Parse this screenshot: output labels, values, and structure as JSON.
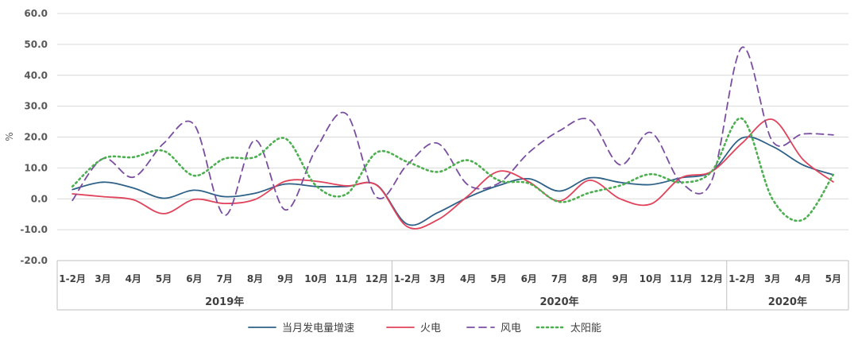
{
  "chart_data": {
    "type": "line",
    "ylabel": "%",
    "ylim": [
      -20,
      60
    ],
    "yticks": [
      "60.0",
      "50.0",
      "40.0",
      "30.0",
      "20.0",
      "10.0",
      "0.0",
      "-10.0",
      "-20.0"
    ],
    "grid": true,
    "legend_position": "bottom",
    "categories": [
      "1-2月",
      "3月",
      "4月",
      "5月",
      "6月",
      "7月",
      "8月",
      "9月",
      "10月",
      "11月",
      "12月",
      "1-2月",
      "3月",
      "4月",
      "5月",
      "6月",
      "7月",
      "8月",
      "9月",
      "10月",
      "11月",
      "12月",
      "1-2月",
      "3月",
      "4月",
      "5月"
    ],
    "groups": [
      {
        "label": "2019年",
        "start": 0,
        "end": 10
      },
      {
        "label": "2020年",
        "start": 11,
        "end": 21
      },
      {
        "label": "2020年",
        "start": 22,
        "end": 25
      }
    ],
    "series": [
      {
        "name": "当月发电量增速",
        "color": "#2e6187",
        "style": "solid",
        "values": [
          3.0,
          5.4,
          3.5,
          0.2,
          2.8,
          0.7,
          1.8,
          4.8,
          4.0,
          4.0,
          4.5,
          -8.2,
          -4.5,
          0.5,
          4.3,
          6.5,
          2.5,
          6.8,
          5.3,
          4.6,
          6.8,
          8.8,
          19.7,
          17.0,
          11.0,
          7.8
        ]
      },
      {
        "name": "火电",
        "color": "#e0435b",
        "style": "solid",
        "values": [
          1.6,
          0.7,
          -0.3,
          -4.8,
          -0.2,
          -1.5,
          -0.2,
          5.7,
          5.7,
          4.2,
          4.4,
          -9.0,
          -6.8,
          1.0,
          8.9,
          5.5,
          -0.7,
          6.0,
          0.0,
          -1.7,
          6.8,
          8.8,
          18.0,
          25.7,
          12.8,
          5.5
        ]
      },
      {
        "name": "风电",
        "color": "#7a4ea0",
        "style": "dashed",
        "values": [
          -0.5,
          13.0,
          7.0,
          18.0,
          24.0,
          -5.3,
          19.0,
          -3.6,
          16.0,
          27.5,
          0.5,
          11.0,
          18.0,
          4.5,
          5.0,
          15.0,
          22.0,
          25.5,
          11.0,
          21.5,
          5.3,
          5.7,
          49.0,
          18.7,
          21.0,
          20.7
        ]
      },
      {
        "name": "太阳能",
        "color": "#4caf50",
        "style": "dotted",
        "values": [
          4.0,
          13.0,
          13.5,
          15.5,
          7.5,
          13.0,
          13.5,
          19.5,
          4.3,
          1.5,
          15.0,
          12.0,
          8.7,
          12.5,
          6.0,
          5.0,
          -1.0,
          2.0,
          4.3,
          8.0,
          5.3,
          8.8,
          26.0,
          0.0,
          -6.8,
          7.8
        ]
      }
    ]
  }
}
